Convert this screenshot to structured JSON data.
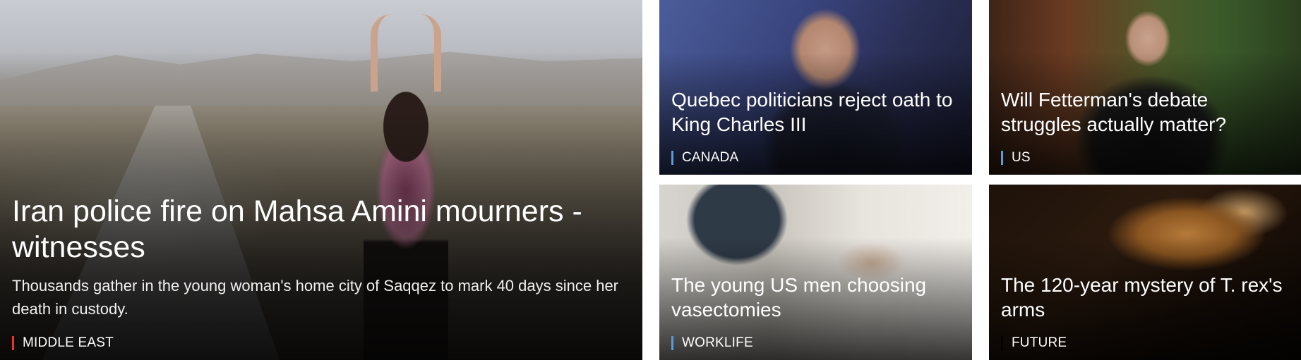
{
  "lead": {
    "headline": "Iran police fire on Mahsa Amini mourners - witnesses",
    "summary": "Thousands gather in the young woman's home city of Saqqez to mark 40 days since her death in custody.",
    "tag": "MIDDLE EAST",
    "tag_color": "#ee3124"
  },
  "stories": [
    {
      "headline": "Quebec politicians reject oath to King Charles III",
      "tag": "CANADA",
      "tag_color": "#5a9bdc"
    },
    {
      "headline": "Will Fetterman's debate struggles actually matter?",
      "tag": "US",
      "tag_color": "#5a9bdc"
    },
    {
      "headline": "The young US men choosing vasectomies",
      "tag": "WORKLIFE",
      "tag_color": "#5a9bdc"
    },
    {
      "headline": "The 120-year mystery of T. rex's arms",
      "tag": "FUTURE",
      "tag_color": "#000000"
    }
  ]
}
